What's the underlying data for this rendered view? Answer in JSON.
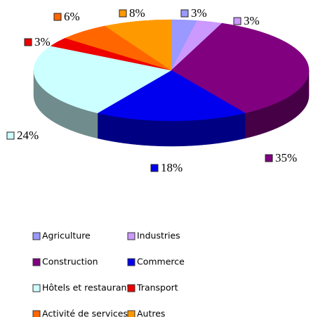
{
  "chart_data": {
    "type": "pie3d",
    "categories": [
      "Agriculture",
      "Industries",
      "Construction",
      "Commerce",
      "Hôtels et restaurants",
      "Transport",
      "Activité de services",
      "Autres"
    ],
    "values": [
      3,
      3,
      35,
      18,
      24,
      3,
      6,
      8
    ],
    "value_labels": [
      "3%",
      "3%",
      "35%",
      "18%",
      "24%",
      "3%",
      "6%",
      "8%"
    ],
    "colors": [
      "#9999ff",
      "#cc99ff",
      "#800080",
      "#0000ee",
      "#ccffff",
      "#ee0000",
      "#ff6600",
      "#ff9900"
    ],
    "legend": "bottom"
  }
}
